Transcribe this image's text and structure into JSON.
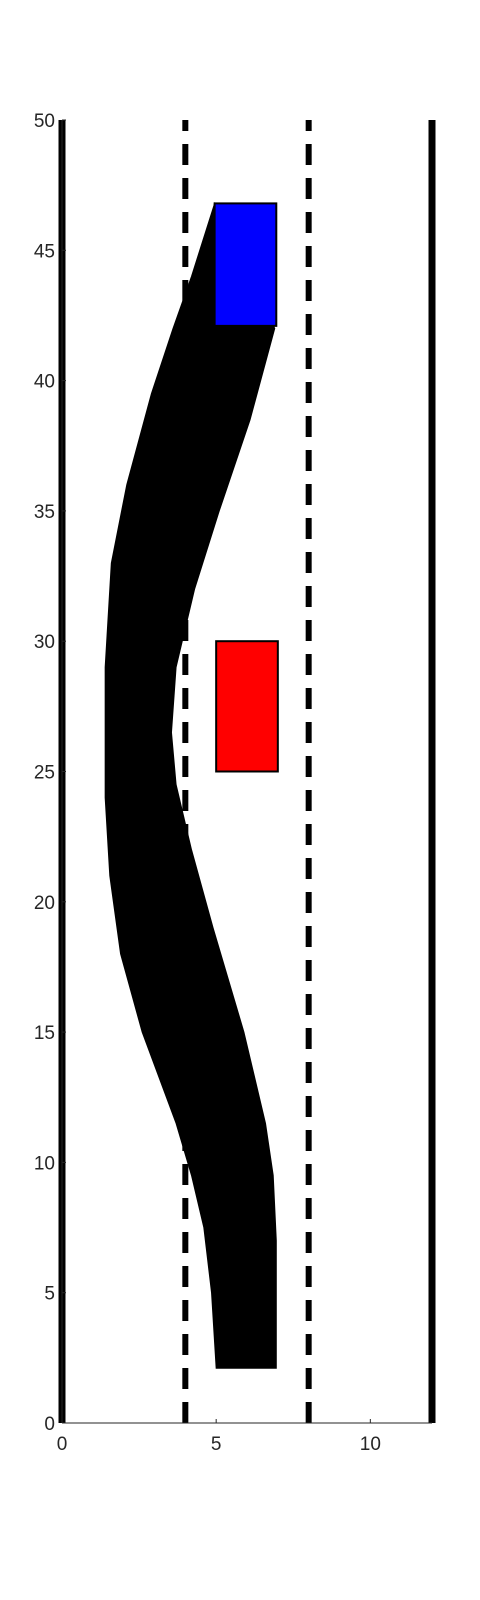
{
  "chart_data": {
    "type": "line",
    "title": "",
    "xlabel": "",
    "ylabel": "",
    "xlim": [
      0,
      12
    ],
    "ylim": [
      0,
      50
    ],
    "grid": false,
    "x_ticks": [
      0,
      5,
      10
    ],
    "y_ticks": [
      0,
      5,
      10,
      15,
      20,
      25,
      30,
      35,
      40,
      45,
      50
    ],
    "road_edges": [
      {
        "x": 0,
        "y": [
          0,
          50
        ],
        "style": "solid"
      },
      {
        "x": 12,
        "y": [
          0,
          50
        ],
        "style": "solid"
      }
    ],
    "lane_markings": [
      {
        "x": 4,
        "y": [
          0,
          50
        ],
        "style": "dashed"
      },
      {
        "x": 8,
        "y": [
          0,
          50
        ],
        "style": "dashed"
      }
    ],
    "swept_path": {
      "color": "#000000",
      "left_edge": [
        {
          "x": 5.0,
          "y": 2.1
        },
        {
          "x": 4.85,
          "y": 5.0
        },
        {
          "x": 4.6,
          "y": 7.5
        },
        {
          "x": 4.2,
          "y": 9.5
        },
        {
          "x": 3.7,
          "y": 11.5
        },
        {
          "x": 2.6,
          "y": 15.0
        },
        {
          "x": 1.9,
          "y": 18.0
        },
        {
          "x": 1.55,
          "y": 21.0
        },
        {
          "x": 1.4,
          "y": 24.0
        },
        {
          "x": 1.4,
          "y": 29.0
        },
        {
          "x": 1.6,
          "y": 33.0
        },
        {
          "x": 2.1,
          "y": 36.0
        },
        {
          "x": 2.9,
          "y": 39.5
        },
        {
          "x": 3.6,
          "y": 42.0
        },
        {
          "x": 4.2,
          "y": 44.0
        },
        {
          "x": 4.95,
          "y": 46.8
        }
      ],
      "right_edge": [
        {
          "x": 6.95,
          "y": 2.1
        },
        {
          "x": 6.95,
          "y": 7.0
        },
        {
          "x": 6.85,
          "y": 9.5
        },
        {
          "x": 6.6,
          "y": 11.5
        },
        {
          "x": 5.9,
          "y": 15.0
        },
        {
          "x": 4.9,
          "y": 19.0
        },
        {
          "x": 4.2,
          "y": 22.0
        },
        {
          "x": 3.7,
          "y": 24.5
        },
        {
          "x": 3.55,
          "y": 26.5
        },
        {
          "x": 3.7,
          "y": 29.0
        },
        {
          "x": 4.3,
          "y": 32.0
        },
        {
          "x": 5.1,
          "y": 35.0
        },
        {
          "x": 6.1,
          "y": 38.5
        },
        {
          "x": 6.9,
          "y": 42.0
        }
      ]
    },
    "vehicles": [
      {
        "role": "ego-final",
        "x": [
          4.95,
          6.95
        ],
        "y": [
          42.1,
          46.8
        ],
        "color": "#0000ff"
      },
      {
        "role": "obstacle",
        "x": [
          5.0,
          7.0
        ],
        "y": [
          25.0,
          30.0
        ],
        "color": "#ff0000"
      }
    ]
  }
}
